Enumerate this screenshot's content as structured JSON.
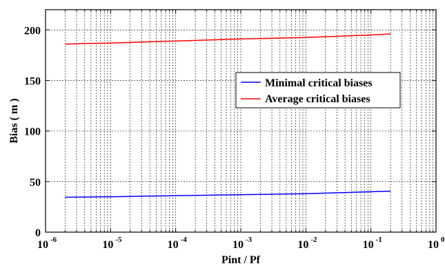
{
  "chart_data": {
    "type": "line",
    "xscale": "log",
    "xlim": [
      1e-06,
      1
    ],
    "ylim": [
      0,
      220
    ],
    "xlabel": "Pint / Pf",
    "ylabel": "Bias ( m )",
    "grid": true,
    "legend_position": "right",
    "x_tick_labels": [
      {
        "base": "10",
        "exp": "-6"
      },
      {
        "base": "10",
        "exp": "-5"
      },
      {
        "base": "10",
        "exp": "-4"
      },
      {
        "base": "10",
        "exp": "-3"
      },
      {
        "base": "10",
        "exp": "-2"
      },
      {
        "base": "10",
        "exp": "-1"
      },
      {
        "base": "10",
        "exp": "0"
      }
    ],
    "y_ticks": [
      0,
      50,
      100,
      150,
      200
    ],
    "series": [
      {
        "name": "Minimal critical biases",
        "color": "#0000ff",
        "x": [
          2e-06,
          1e-05,
          0.0001,
          0.001,
          0.01,
          0.1,
          0.2
        ],
        "y": [
          34.5,
          35,
          36,
          37,
          38,
          40,
          40.5
        ]
      },
      {
        "name": "Average critical biases",
        "color": "#ff0000",
        "x": [
          2e-06,
          1e-05,
          0.0001,
          0.001,
          0.01,
          0.1,
          0.2
        ],
        "y": [
          186,
          187,
          189,
          191,
          192.5,
          195,
          196
        ]
      }
    ]
  }
}
